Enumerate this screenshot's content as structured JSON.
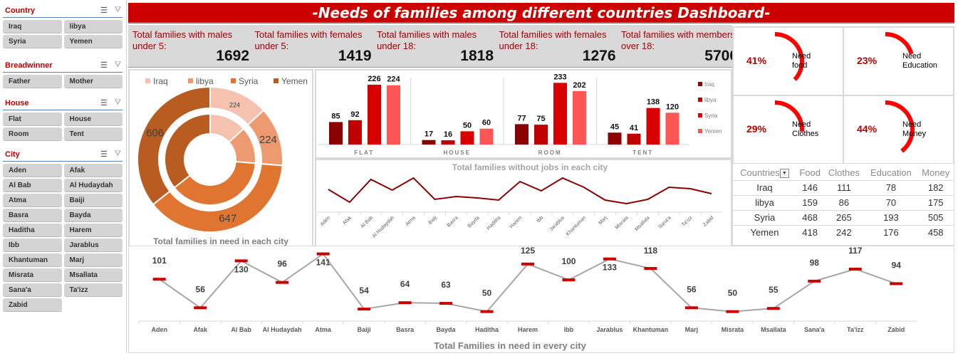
{
  "sidebar": {
    "slicers": [
      {
        "title": "Country",
        "items": [
          "Iraq",
          "libya",
          "Syria",
          "Yemen"
        ]
      },
      {
        "title": "Breadwinner",
        "items": [
          "Father",
          "Mother"
        ]
      },
      {
        "title": "House",
        "items": [
          "Flat",
          "House",
          "Room",
          "Tent"
        ]
      },
      {
        "title": "City",
        "items": [
          "Aden",
          "Afak",
          "Al Bab",
          "Al Hudaydah",
          "Atma",
          "Baiji",
          "Basra",
          "Bayda",
          "Haditha",
          "Harem",
          "Ibb",
          "Jarablus",
          "Khantuman",
          "Marj",
          "Misrata",
          "Msallata",
          "Sana'a",
          "Ta'izz",
          "Zabid"
        ]
      }
    ],
    "icons": {
      "multiselect": "multi-select-icon",
      "clear": "clear-filter-icon"
    }
  },
  "header": {
    "title": "-Needs of families among different countries Dashboard-"
  },
  "kpis": [
    {
      "label": "Total families with males under 5:",
      "value": "1692"
    },
    {
      "label": "Total families with females under 5:",
      "value": "1419"
    },
    {
      "label": "Total families with males under 18:",
      "value": "1818"
    },
    {
      "label": "Total families with females under 18:",
      "value": "1276"
    },
    {
      "label": "Total families with members over 18:",
      "value": "5700"
    }
  ],
  "gauges": [
    {
      "pct": "41%",
      "value": 0.41,
      "label1": "Need",
      "label2": "food"
    },
    {
      "pct": "23%",
      "value": 0.23,
      "label1": "Need",
      "label2": "Education"
    },
    {
      "pct": "29%",
      "value": 0.29,
      "label1": "Need",
      "label2": "Clothes"
    },
    {
      "pct": "44%",
      "value": 0.44,
      "label1": "Need",
      "label2": "Money"
    }
  ],
  "colors": {
    "accent": "#cc0000",
    "kpi_text": "#a00000",
    "panel_bg": "#d9d9d9"
  },
  "country_table": {
    "headers": [
      "Countries",
      "Food",
      "Clothes",
      "Education",
      "Money"
    ],
    "rows": [
      [
        "Iraq",
        "146",
        "111",
        "78",
        "182"
      ],
      [
        "libya",
        "159",
        "86",
        "70",
        "175"
      ],
      [
        "Syria",
        "468",
        "265",
        "193",
        "505"
      ],
      [
        "Yemen",
        "418",
        "242",
        "176",
        "458"
      ]
    ]
  },
  "chart_data": [
    {
      "type": "pie",
      "subtype": "doughnut",
      "title": "Total families in need in each city",
      "legend": [
        "Iraq",
        "libya",
        "Syria",
        "Yemen"
      ],
      "legend_position": "top",
      "colors": [
        "#f4c2ae",
        "#ee9a71",
        "#df7530",
        "#b85c22"
      ],
      "rings": [
        {
          "name": "outer",
          "values": [
            224,
            224,
            647,
            606
          ]
        },
        {
          "name": "inner",
          "values": [
            224,
            224,
            647,
            606
          ]
        }
      ],
      "data_labels": [
        "224",
        "224",
        "647",
        "606"
      ]
    },
    {
      "type": "bar",
      "title": "",
      "categories": [
        "FLAT",
        "HOUSE",
        "ROOM",
        "TENT"
      ],
      "series": [
        {
          "name": "Iraq",
          "color": "#8b0000",
          "values": [
            85,
            17,
            77,
            45
          ]
        },
        {
          "name": "libya",
          "color": "#c00000",
          "values": [
            92,
            16,
            75,
            41
          ]
        },
        {
          "name": "Syria",
          "color": "#d90000",
          "values": [
            226,
            50,
            233,
            138
          ]
        },
        {
          "name": "Yemen",
          "color": "#ff5555",
          "values": [
            224,
            60,
            202,
            120
          ]
        }
      ],
      "legend_position": "right",
      "ylim": [
        0,
        240
      ]
    },
    {
      "type": "line",
      "title": "Total families without jobs in each city",
      "categories": [
        "Aden",
        "Afak",
        "Al Bab",
        "Al Hudaydah",
        "Atma",
        "Baiji",
        "Basra",
        "Bayda",
        "Haditha",
        "Harem",
        "Ibb",
        "Jarablus",
        "Khantuman",
        "Marj",
        "Misrata",
        "Msallata",
        "Sana'a",
        "Ta'izz",
        "Zabid"
      ],
      "values": [
        62,
        44,
        76,
        61,
        78,
        48,
        52,
        50,
        47,
        73,
        60,
        78,
        65,
        47,
        42,
        48,
        65,
        63,
        56
      ],
      "color": "#8b0000",
      "ylim": [
        0,
        100
      ]
    },
    {
      "type": "line",
      "title": "Total Families in need in every city",
      "categories": [
        "Aden",
        "Afak",
        "Al Bab",
        "Al Hudaydah",
        "Atma",
        "Baiji",
        "Basra",
        "Bayda",
        "Haditha",
        "Harem",
        "Ibb",
        "Jarablus",
        "Khantuman",
        "Marj",
        "Misrata",
        "Msallata",
        "Sana'a",
        "Ta'izz",
        "Zabid"
      ],
      "values": [
        101,
        56,
        130,
        96,
        141,
        54,
        64,
        63,
        50,
        125,
        100,
        133,
        118,
        56,
        50,
        55,
        98,
        117,
        94
      ],
      "line_color": "#a6a6a6",
      "marker_color": "#cc0000",
      "ylim": [
        0,
        145
      ]
    }
  ]
}
